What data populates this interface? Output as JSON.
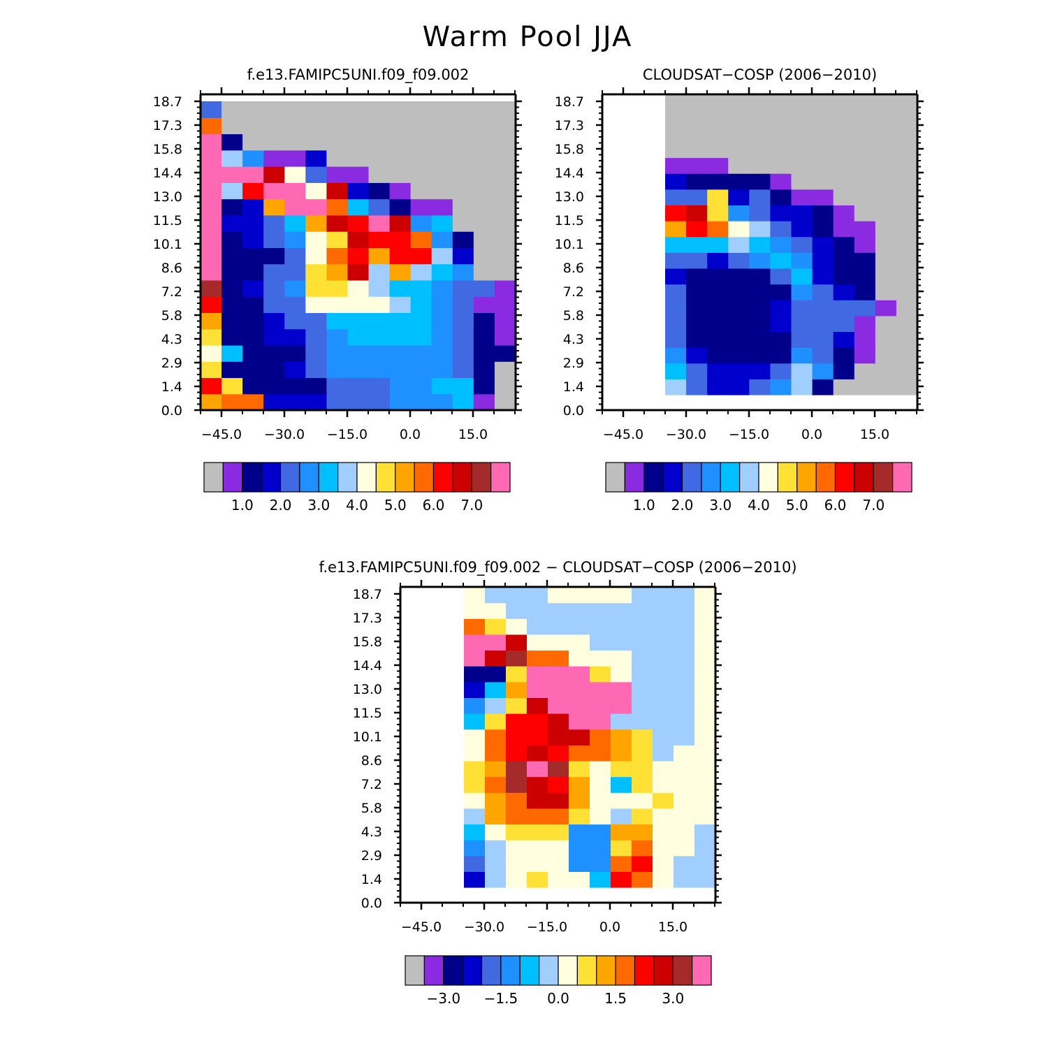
{
  "title": "Warm Pool JJA",
  "colors": {
    "missing": "#bebebe",
    "seq_palette": [
      "#bebebe",
      "#8a2be2",
      "#00008b",
      "#0000cd",
      "#4169e1",
      "#1e90ff",
      "#00bfff",
      "#a0cfff",
      "#ffffe0",
      "#ffe135",
      "#ffa500",
      "#ff6a00",
      "#ff0000",
      "#cd0000",
      "#a52a2a",
      "#ff69b4"
    ],
    "diff_palette": [
      "#bebebe",
      "#8a2be2",
      "#00008b",
      "#0000cd",
      "#4169e1",
      "#1e90ff",
      "#00bfff",
      "#a0cfff",
      "#ffffe0",
      "#ffe135",
      "#ffa500",
      "#ff6a00",
      "#ff0000",
      "#cd0000",
      "#a52a2a",
      "#ff69b4"
    ]
  },
  "chart_data": [
    {
      "type": "heatmap",
      "title": "f.e13.FAMIPC5UNI.f09_f09.002",
      "x_ticks": [
        "−45.0",
        "−30.0",
        "−15.0",
        "0.0",
        "15.0"
      ],
      "y_ticks": [
        "0.0",
        "1.4",
        "2.9",
        "4.3",
        "5.8",
        "7.2",
        "8.6",
        "10.1",
        "11.5",
        "13.0",
        "14.4",
        "15.8",
        "17.3",
        "18.7"
      ],
      "colorbar_labels": [
        "1.0",
        "2.0",
        "3.0",
        "4.0",
        "5.0",
        "6.0",
        "7.0"
      ],
      "palette": "seq_palette",
      "grid": false
    },
    {
      "type": "heatmap",
      "title": "CLOUDSAT−COSP (2006−2010)",
      "x_ticks": [
        "−45.0",
        "−30.0",
        "−15.0",
        "0.0",
        "15.0"
      ],
      "y_ticks": [
        "0.0",
        "1.4",
        "2.9",
        "4.3",
        "5.8",
        "7.2",
        "8.6",
        "10.1",
        "11.5",
        "13.0",
        "14.4",
        "15.8",
        "17.3",
        "18.7"
      ],
      "colorbar_labels": [
        "1.0",
        "2.0",
        "3.0",
        "4.0",
        "5.0",
        "6.0",
        "7.0"
      ],
      "palette": "seq_palette",
      "grid": false
    },
    {
      "type": "heatmap",
      "title": "f.e13.FAMIPC5UNI.f09_f09.002 − CLOUDSAT−COSP (2006−2010)",
      "x_ticks": [
        "−45.0",
        "−30.0",
        "−15.0",
        "0.0",
        "15.0"
      ],
      "y_ticks": [
        "0.0",
        "1.4",
        "2.9",
        "4.3",
        "5.8",
        "7.2",
        "8.6",
        "10.1",
        "11.5",
        "13.0",
        "14.4",
        "15.8",
        "17.3",
        "18.7"
      ],
      "colorbar_labels": [
        "−3.0",
        "−1.5",
        "0.0",
        "1.5",
        "3.0"
      ],
      "palette": "diff_palette",
      "grid": false
    }
  ]
}
